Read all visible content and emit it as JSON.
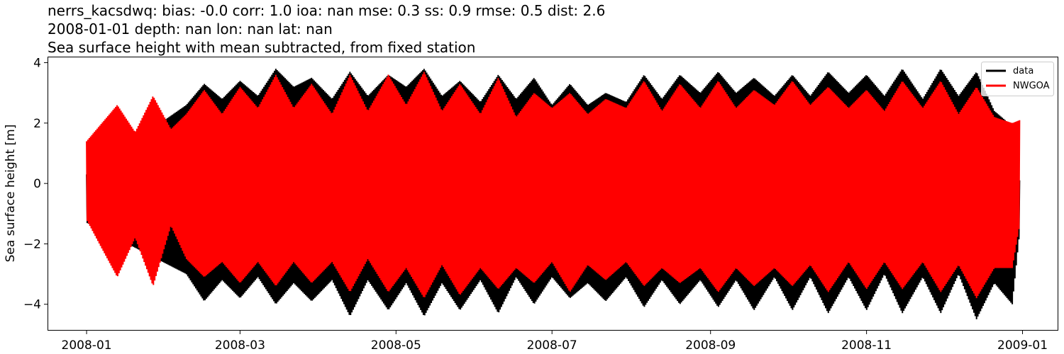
{
  "chart_data": {
    "type": "line",
    "title_lines": [
      "nerrs_kacsdwq: bias: -0.0  corr: 1.0  ioa: nan  mse: 0.3  ss: 0.9  rmse: 0.5  dist: 2.6",
      "2008-01-01 depth: nan lon: nan lat: nan",
      "Sea surface height with mean subtracted, from fixed station"
    ],
    "xlabel": "",
    "ylabel": "Sea surface height [m]",
    "xlim": [
      "2007-12-17",
      "2009-01-15"
    ],
    "ylim": [
      -4.85,
      4.2
    ],
    "x_ticks": [
      {
        "date": "2008-01-01",
        "label": "2008-01"
      },
      {
        "date": "2008-03-01",
        "label": "2008-03"
      },
      {
        "date": "2008-05-01",
        "label": "2008-05"
      },
      {
        "date": "2008-07-01",
        "label": "2008-07"
      },
      {
        "date": "2008-09-01",
        "label": "2008-09"
      },
      {
        "date": "2008-11-01",
        "label": "2008-11"
      },
      {
        "date": "2009-01-01",
        "label": "2009-01"
      }
    ],
    "y_ticks": [
      {
        "value": 4,
        "label": "4"
      },
      {
        "value": 2,
        "label": "2"
      },
      {
        "value": 0,
        "label": "0"
      },
      {
        "value": -2,
        "label": "−2"
      },
      {
        "value": -4,
        "label": "−4"
      }
    ],
    "grid": false,
    "legend": {
      "placement": "top-right",
      "entries": [
        "data",
        "NWGOA"
      ]
    },
    "series": [
      {
        "name": "data",
        "color": "#000000",
        "x": [
          "2008-01-01",
          "2008-01-06",
          "2008-01-13",
          "2008-01-20",
          "2008-01-27",
          "2008-02-03",
          "2008-02-09",
          "2008-02-16",
          "2008-02-23",
          "2008-03-01",
          "2008-03-08",
          "2008-03-15",
          "2008-03-22",
          "2008-03-29",
          "2008-04-06",
          "2008-04-13",
          "2008-04-20",
          "2008-04-28",
          "2008-05-05",
          "2008-05-12",
          "2008-05-19",
          "2008-05-26",
          "2008-06-03",
          "2008-06-10",
          "2008-06-17",
          "2008-06-24",
          "2008-07-01",
          "2008-07-08",
          "2008-07-15",
          "2008-07-22",
          "2008-07-30",
          "2008-08-06",
          "2008-08-13",
          "2008-08-20",
          "2008-08-28",
          "2008-09-04",
          "2008-09-11",
          "2008-09-18",
          "2008-09-26",
          "2008-10-03",
          "2008-10-10",
          "2008-10-17",
          "2008-10-25",
          "2008-11-01",
          "2008-11-08",
          "2008-11-15",
          "2008-11-23",
          "2008-11-30",
          "2008-12-07",
          "2008-12-14",
          "2008-12-21",
          "2008-12-28",
          "2008-12-31"
        ],
        "high": [
          0.3,
          null,
          null,
          null,
          null,
          null,
          2.6,
          3.3,
          2.8,
          3.4,
          2.9,
          3.8,
          3.2,
          3.5,
          2.8,
          3.7,
          2.9,
          3.6,
          3.2,
          3.8,
          2.9,
          3.4,
          2.7,
          3.6,
          2.8,
          3.5,
          2.6,
          3.3,
          2.6,
          3.0,
          2.7,
          3.6,
          2.8,
          3.6,
          3.0,
          3.7,
          3.0,
          3.5,
          2.9,
          3.6,
          2.9,
          3.7,
          3.0,
          3.6,
          2.9,
          3.8,
          2.8,
          3.8,
          2.9,
          3.7,
          2.4,
          1.9,
          0.0
        ],
        "low": [
          -1.3,
          null,
          null,
          null,
          null,
          null,
          -3.0,
          -3.9,
          -3.2,
          -3.8,
          -3.1,
          -4.0,
          -3.3,
          -3.9,
          -3.2,
          -4.4,
          -3.2,
          -4.2,
          -3.3,
          -4.4,
          -3.3,
          -4.2,
          -3.2,
          -4.3,
          -3.1,
          -4.0,
          -3.1,
          -3.8,
          -3.3,
          -3.9,
          -3.1,
          -4.1,
          -3.2,
          -4.0,
          -3.2,
          -4.1,
          -3.2,
          -4.2,
          -3.1,
          -4.2,
          -3.1,
          -4.3,
          -3.1,
          -4.2,
          -3.0,
          -4.3,
          -3.1,
          -4.3,
          -3.0,
          -4.5,
          -3.3,
          -4.0,
          -1.5
        ]
      },
      {
        "name": "NWGOA",
        "color": "#ff0000",
        "x": [
          "2008-01-01",
          "2008-01-06",
          "2008-01-13",
          "2008-01-20",
          "2008-01-27",
          "2008-02-03",
          "2008-02-09",
          "2008-02-16",
          "2008-02-23",
          "2008-03-01",
          "2008-03-08",
          "2008-03-15",
          "2008-03-22",
          "2008-03-29",
          "2008-04-06",
          "2008-04-13",
          "2008-04-20",
          "2008-04-28",
          "2008-05-05",
          "2008-05-12",
          "2008-05-19",
          "2008-05-26",
          "2008-06-03",
          "2008-06-10",
          "2008-06-17",
          "2008-06-24",
          "2008-07-01",
          "2008-07-08",
          "2008-07-15",
          "2008-07-22",
          "2008-07-30",
          "2008-08-06",
          "2008-08-13",
          "2008-08-20",
          "2008-08-28",
          "2008-09-04",
          "2008-09-11",
          "2008-09-18",
          "2008-09-26",
          "2008-10-03",
          "2008-10-10",
          "2008-10-17",
          "2008-10-25",
          "2008-11-01",
          "2008-11-08",
          "2008-11-15",
          "2008-11-23",
          "2008-11-30",
          "2008-12-07",
          "2008-12-14",
          "2008-12-21",
          "2008-12-28",
          "2008-12-31"
        ],
        "high": [
          1.4,
          1.9,
          2.6,
          1.7,
          2.9,
          1.8,
          2.3,
          3.1,
          2.3,
          3.2,
          2.5,
          3.6,
          2.5,
          3.3,
          2.3,
          3.6,
          2.4,
          3.6,
          2.6,
          3.7,
          2.4,
          3.3,
          2.3,
          3.5,
          2.2,
          3.0,
          2.5,
          3.0,
          2.3,
          2.8,
          2.5,
          3.4,
          2.4,
          3.3,
          2.5,
          3.4,
          2.5,
          3.1,
          2.6,
          3.4,
          2.6,
          3.2,
          2.5,
          3.1,
          2.4,
          3.4,
          2.5,
          3.4,
          2.3,
          3.2,
          2.2,
          2.0,
          2.1
        ],
        "low": [
          -1.2,
          -2.0,
          -3.1,
          -1.8,
          -3.4,
          -1.4,
          -2.5,
          -3.1,
          -2.6,
          -3.3,
          -2.6,
          -3.4,
          -2.6,
          -3.3,
          -2.6,
          -3.6,
          -2.5,
          -3.6,
          -2.8,
          -3.8,
          -2.7,
          -3.7,
          -2.8,
          -3.5,
          -2.8,
          -3.3,
          -2.6,
          -3.6,
          -2.7,
          -3.2,
          -2.6,
          -3.4,
          -2.8,
          -3.3,
          -2.8,
          -3.6,
          -2.8,
          -3.4,
          -2.8,
          -3.4,
          -2.7,
          -3.6,
          -2.6,
          -3.5,
          -2.6,
          -3.5,
          -2.6,
          -3.6,
          -2.7,
          -3.8,
          -2.8,
          -2.8,
          -1.3
        ]
      }
    ]
  }
}
